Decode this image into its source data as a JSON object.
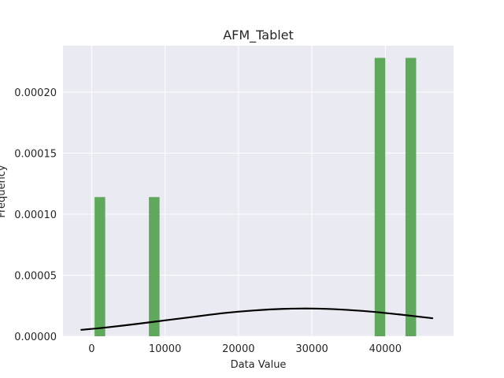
{
  "chart_data": {
    "type": "bar",
    "title": "AFM_Tablet",
    "xlabel": "Data Value",
    "ylabel": "Frequency",
    "xlim": [
      -3900,
      49300
    ],
    "ylim": [
      0,
      0.000238
    ],
    "xticks": [
      {
        "value": 0,
        "label": "0"
      },
      {
        "value": 10000,
        "label": "10000"
      },
      {
        "value": 20000,
        "label": "20000"
      },
      {
        "value": 30000,
        "label": "30000"
      },
      {
        "value": 40000,
        "label": "40000"
      }
    ],
    "yticks": [
      {
        "value": 0,
        "label": "0.00000"
      },
      {
        "value": 5e-05,
        "label": "0.00005"
      },
      {
        "value": 0.0001,
        "label": "0.00010"
      },
      {
        "value": 0.00015,
        "label": "0.00015"
      },
      {
        "value": 0.0002,
        "label": "0.00020"
      }
    ],
    "bins": [
      {
        "x0": 400,
        "x1": 1850,
        "value": 0.000114
      },
      {
        "x0": 7800,
        "x1": 9250,
        "value": 0.000114
      },
      {
        "x0": 38550,
        "x1": 40000,
        "value": 0.000228
      },
      {
        "x0": 42750,
        "x1": 44200,
        "value": 0.000228
      }
    ],
    "bar_color": "#4c9e45",
    "density_curve": {
      "color": "#000000",
      "x": [
        -1500,
        2000,
        6000,
        10000,
        14000,
        18000,
        22000,
        26000,
        30000,
        34000,
        38000,
        42000,
        46500
      ],
      "y": [
        5.2e-06,
        7.2e-06,
        1e-05,
        1.3e-05,
        1.6e-05,
        1.9e-05,
        2.11e-05,
        2.24e-05,
        2.27e-05,
        2.19e-05,
        2.02e-05,
        1.78e-05,
        1.47e-05
      ]
    },
    "grid": true,
    "background": "#eaeaf2",
    "grid_color": "#ffffff"
  }
}
